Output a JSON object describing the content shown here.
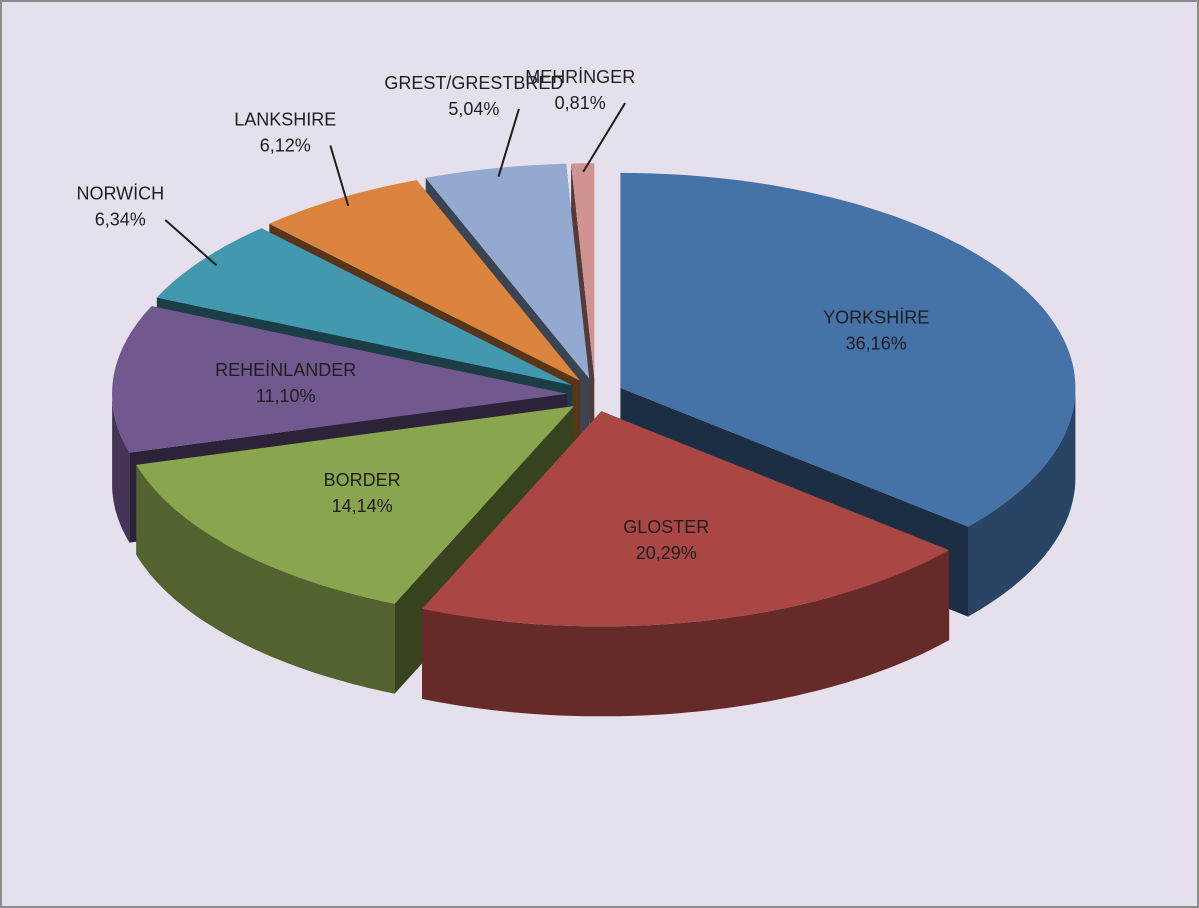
{
  "chart_data": {
    "type": "pie",
    "categories": [
      "YORKSHİRE",
      "GLOSTER",
      "BORDER",
      "REHEİNLANDER",
      "NORWİCH",
      "LANKSHIRE",
      "GREST/GRESTBRED",
      "MEHRİNGER"
    ],
    "values": [
      36.16,
      20.29,
      14.14,
      11.1,
      6.34,
      6.12,
      5.04,
      0.81
    ],
    "value_labels": [
      "36,16%",
      "20,29%",
      "14,14%",
      "11,10%",
      "6,34%",
      "6,12%",
      "5,04%",
      "0,81%"
    ],
    "colors": [
      "#4572a7",
      "#aa4643",
      "#89a54e",
      "#71588f",
      "#4198af",
      "#db843d",
      "#93a9cf",
      "#d19392"
    ]
  }
}
